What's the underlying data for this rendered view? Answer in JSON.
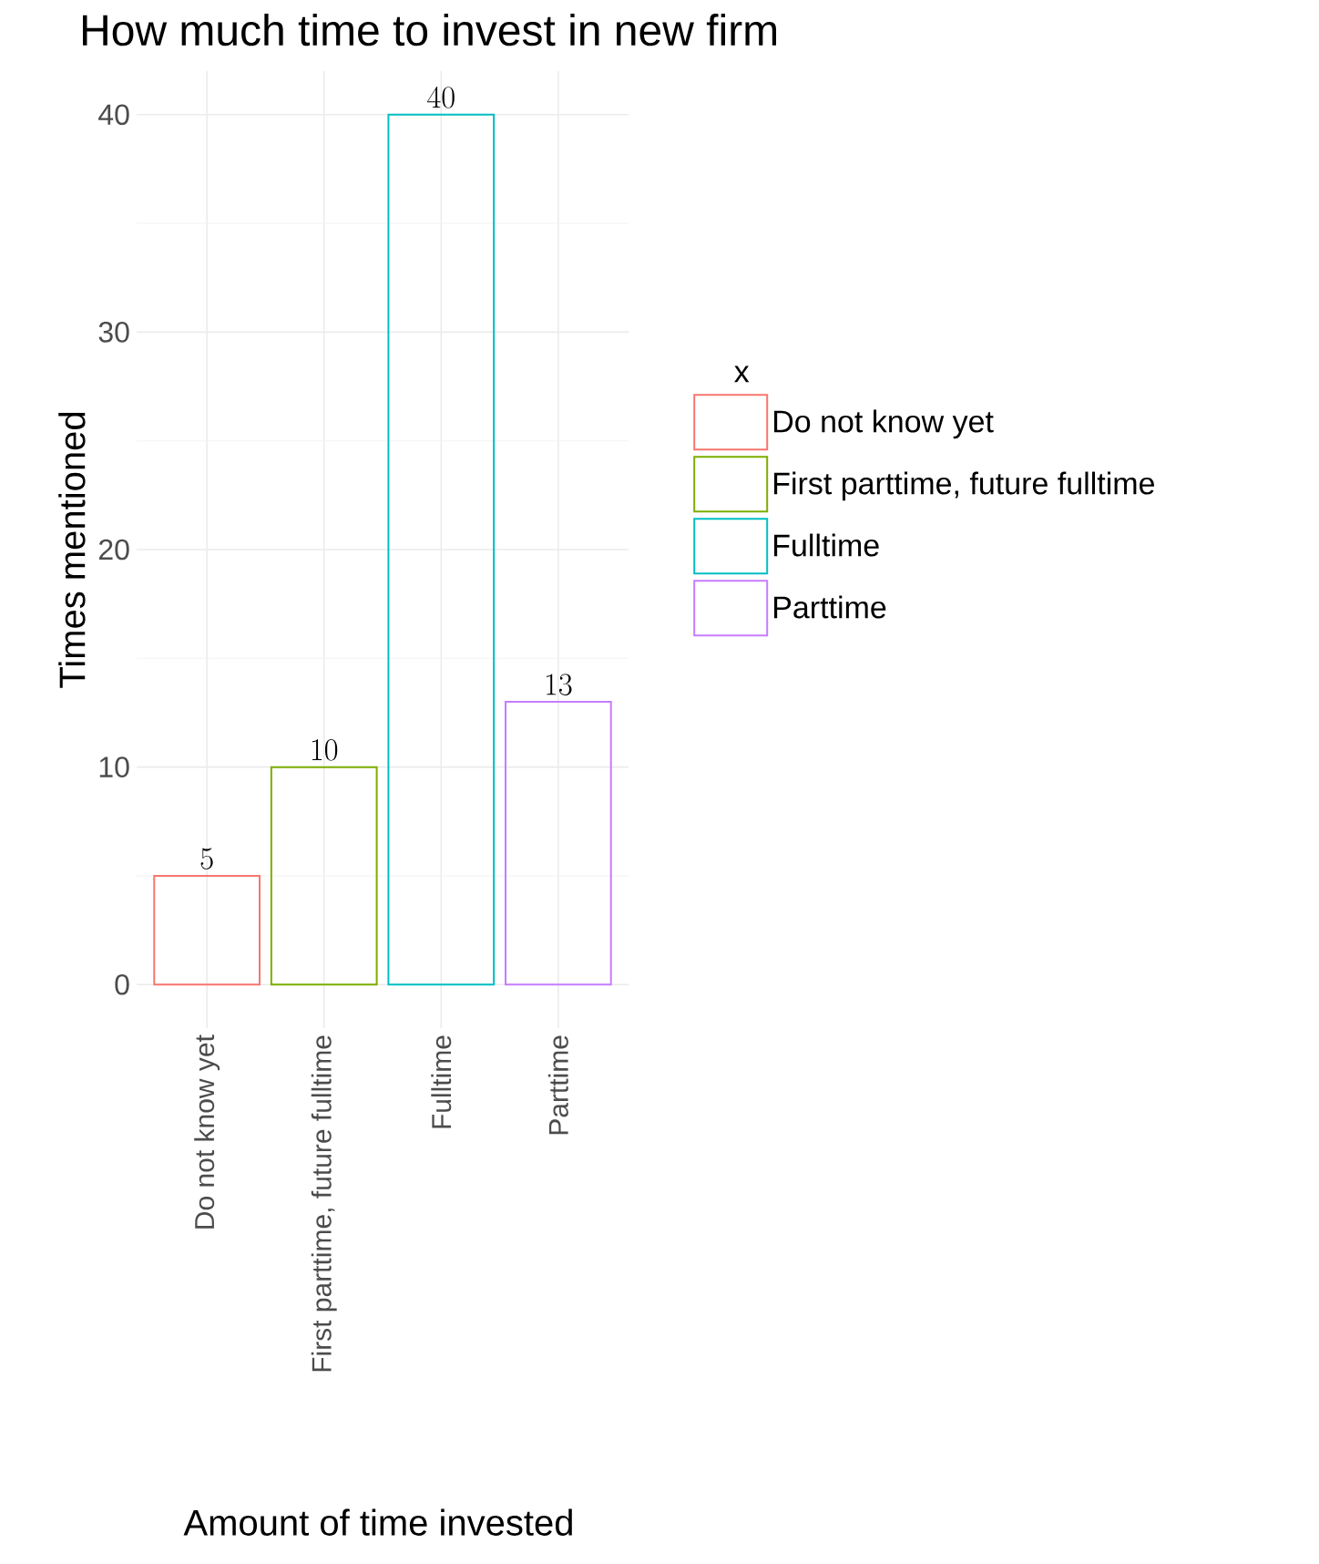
{
  "chart_data": {
    "type": "bar",
    "title": "How much time to invest in new firm",
    "xlabel": "Amount of time invested",
    "ylabel": "Times mentioned",
    "legend_title": "x",
    "categories": [
      "Do not know yet",
      "First parttime, future fulltime",
      "Fulltime",
      "Parttime"
    ],
    "series": [
      {
        "name": "Do not know yet",
        "color": "#f8766d",
        "values": [
          5,
          null,
          null,
          null
        ]
      },
      {
        "name": "First parttime, future fulltime",
        "color": "#7cae00",
        "values": [
          null,
          10,
          null,
          null
        ]
      },
      {
        "name": "Fulltime",
        "color": "#00bfc4",
        "values": [
          null,
          null,
          40,
          null
        ]
      },
      {
        "name": "Parttime",
        "color": "#c77cff",
        "values": [
          null,
          null,
          null,
          13
        ]
      }
    ],
    "ylim": [
      -2,
      42
    ],
    "yticks": [
      0,
      10,
      20,
      30,
      40
    ],
    "grid": true,
    "legend": "right",
    "data_labels": true
  }
}
